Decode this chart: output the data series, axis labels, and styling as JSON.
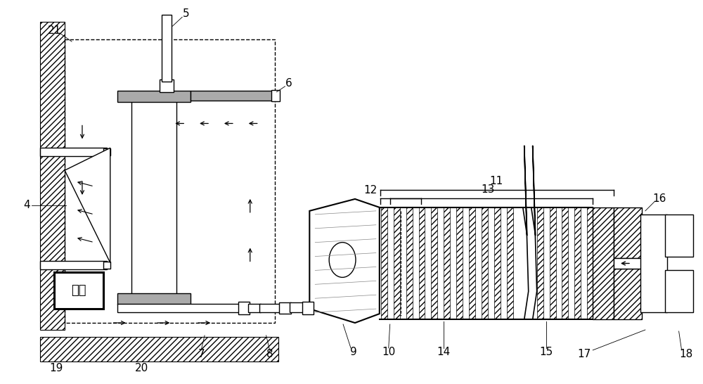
{
  "bg_color": "#ffffff",
  "line_color": "#000000",
  "fig_width": 10.0,
  "fig_height": 5.46,
  "dpi": 100,
  "heating_box_text": "加热"
}
